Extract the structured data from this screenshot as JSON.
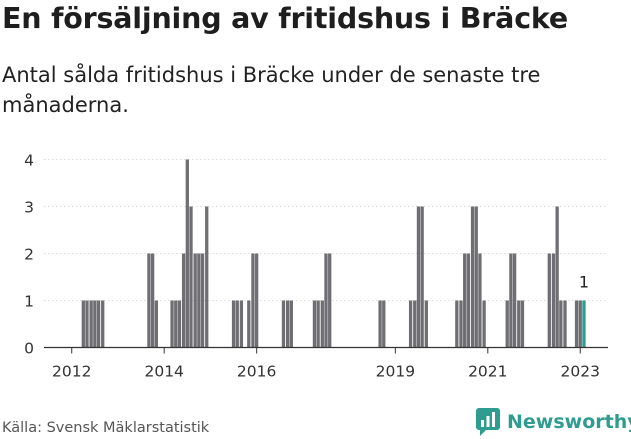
{
  "title": "En försäljning av fritidshus i Bräcke",
  "subtitle": "Antal sålda fritidshus i Bräcke under de senaste tre månaderna.",
  "source": "Källa: Svensk Mäklarstatistik",
  "brand": "Newsworthy",
  "chart_data": {
    "type": "bar",
    "x_unit": "year",
    "xlim": [
      2011.4,
      2023.6
    ],
    "ylim": [
      0,
      4
    ],
    "yticks": [
      0,
      1,
      2,
      3,
      4
    ],
    "xticks": [
      "2012",
      "2014",
      "2016",
      "2019",
      "2021",
      "2023"
    ],
    "grid": true,
    "bar_color": "#6f6f73",
    "highlight_color": "#2e9c8e",
    "annotation": "1",
    "x": [
      2012.25,
      2012.33,
      2012.42,
      2012.5,
      2012.58,
      2012.67,
      2013.67,
      2013.75,
      2013.83,
      2014.17,
      2014.25,
      2014.33,
      2014.42,
      2014.5,
      2014.58,
      2014.67,
      2014.75,
      2014.83,
      2014.92,
      2015.5,
      2015.58,
      2015.67,
      2015.83,
      2015.92,
      2016.0,
      2016.58,
      2016.67,
      2016.75,
      2017.25,
      2017.33,
      2017.42,
      2017.5,
      2017.58,
      2018.67,
      2018.75,
      2019.33,
      2019.42,
      2019.5,
      2019.58,
      2019.67,
      2020.33,
      2020.42,
      2020.5,
      2020.58,
      2020.67,
      2020.75,
      2020.83,
      2020.92,
      2021.42,
      2021.5,
      2021.58,
      2021.67,
      2021.75,
      2022.33,
      2022.42,
      2022.5,
      2022.58,
      2022.67,
      2022.92,
      2023.0,
      2023.08
    ],
    "values": [
      1,
      1,
      1,
      1,
      1,
      1,
      2,
      2,
      1,
      1,
      1,
      1,
      2,
      4,
      3,
      2,
      2,
      2,
      3,
      1,
      1,
      1,
      1,
      2,
      2,
      1,
      1,
      1,
      1,
      1,
      1,
      2,
      2,
      1,
      1,
      1,
      1,
      3,
      3,
      1,
      1,
      1,
      2,
      2,
      3,
      3,
      2,
      1,
      1,
      2,
      2,
      1,
      1,
      2,
      2,
      3,
      1,
      1,
      1,
      1,
      1
    ]
  }
}
